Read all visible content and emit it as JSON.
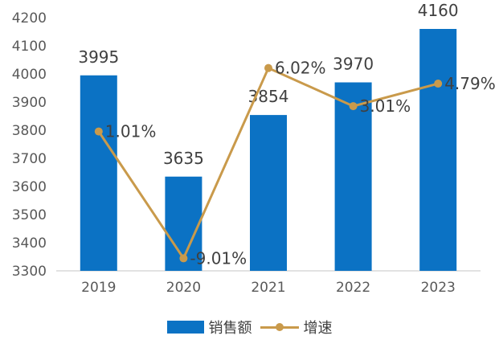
{
  "chart_data": {
    "type": "bar+line",
    "categories": [
      "2019",
      "2020",
      "2021",
      "2022",
      "2023"
    ],
    "series": [
      {
        "name": "销售额",
        "type": "bar",
        "values": [
          3995,
          3635,
          3854,
          3970,
          4160
        ],
        "labels": [
          "3995",
          "3635",
          "3854",
          "3970",
          "4160"
        ],
        "color": "#0b72c4"
      },
      {
        "name": "增速",
        "type": "line",
        "values": [
          1.01,
          -9.01,
          6.02,
          3.01,
          4.79
        ],
        "labels": [
          "1.01%",
          "-9.01%",
          "6.02%",
          "3.01%",
          "4.79%"
        ],
        "color": "#c99a4b",
        "negative_label_color": "#c00000"
      }
    ],
    "y_axis": {
      "min": 3300,
      "max": 4200,
      "step": 100,
      "ticks": [
        "3300",
        "3400",
        "3500",
        "3600",
        "3700",
        "3800",
        "3900",
        "4000",
        "4100",
        "4200"
      ]
    },
    "line_axis_hidden": {
      "min": -10,
      "max": 10
    },
    "grid": false,
    "legend": "bottom"
  }
}
